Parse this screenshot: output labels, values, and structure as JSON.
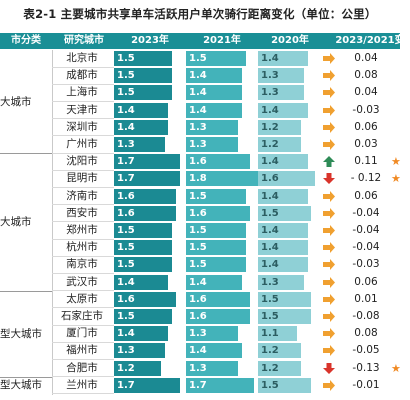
{
  "title": "表2-1 主要城市共享单车活跃用户单次骑行距离变化（单位：公里）",
  "headers": {
    "category": "市分类",
    "city": "研究城市",
    "y2023": "2023年",
    "y2021": "2021年",
    "y2020": "2020年",
    "diff": "2023/2021变"
  },
  "colors": {
    "y2023": "#1b8a93",
    "y2021": "#43b3ba",
    "y2020": "#8fd0d6",
    "up": "#2e8b57",
    "down": "#d9342b",
    "flat": "#f0a030",
    "star": "#f08a24"
  },
  "groups": [
    {
      "label": "大城市",
      "start": 0,
      "count": 6
    },
    {
      "label": "大城市",
      "start": 6,
      "count": 8
    },
    {
      "label": "型大城市",
      "start": 14,
      "count": 5
    },
    {
      "label": "型大城市",
      "start": 19,
      "count": 1
    }
  ],
  "rows": [
    {
      "city": "北京市",
      "y2023": "1.5",
      "y2021": "1.5",
      "y2020": "1.4",
      "trend": "flat-right",
      "diff": "0.04",
      "star": ""
    },
    {
      "city": "成都市",
      "y2023": "1.5",
      "y2021": "1.4",
      "y2020": "1.3",
      "trend": "flat-right",
      "diff": "0.08",
      "star": ""
    },
    {
      "city": "上海市",
      "y2023": "1.5",
      "y2021": "1.4",
      "y2020": "1.3",
      "trend": "flat-right",
      "diff": "0.04",
      "star": ""
    },
    {
      "city": "天津市",
      "y2023": "1.4",
      "y2021": "1.4",
      "y2020": "1.4",
      "trend": "flat-right",
      "diff": "-0.03",
      "star": ""
    },
    {
      "city": "深圳市",
      "y2023": "1.4",
      "y2021": "1.3",
      "y2020": "1.2",
      "trend": "flat-right",
      "diff": "0.06",
      "star": ""
    },
    {
      "city": "广州市",
      "y2023": "1.3",
      "y2021": "1.3",
      "y2020": "1.2",
      "trend": "flat-right",
      "diff": "0.03",
      "star": ""
    },
    {
      "city": "沈阳市",
      "y2023": "1.7",
      "y2021": "1.6",
      "y2020": "1.4",
      "trend": "up",
      "diff": "0.11",
      "star": "★"
    },
    {
      "city": "昆明市",
      "y2023": "1.7",
      "y2021": "1.8",
      "y2020": "1.6",
      "trend": "down",
      "diff": "- 0.12",
      "star": "★"
    },
    {
      "city": "济南市",
      "y2023": "1.6",
      "y2021": "1.5",
      "y2020": "1.4",
      "trend": "flat-right",
      "diff": "0.06",
      "star": ""
    },
    {
      "city": "西安市",
      "y2023": "1.6",
      "y2021": "1.6",
      "y2020": "1.5",
      "trend": "flat-right",
      "diff": "-0.04",
      "star": ""
    },
    {
      "city": "郑州市",
      "y2023": "1.5",
      "y2021": "1.5",
      "y2020": "1.4",
      "trend": "flat-right",
      "diff": "-0.04",
      "star": ""
    },
    {
      "city": "杭州市",
      "y2023": "1.5",
      "y2021": "1.5",
      "y2020": "1.4",
      "trend": "flat-right",
      "diff": "-0.04",
      "star": ""
    },
    {
      "city": "南京市",
      "y2023": "1.5",
      "y2021": "1.5",
      "y2020": "1.4",
      "trend": "flat-right",
      "diff": "-0.03",
      "star": ""
    },
    {
      "city": "武汉市",
      "y2023": "1.4",
      "y2021": "1.4",
      "y2020": "1.3",
      "trend": "flat-right",
      "diff": "0.06",
      "star": ""
    },
    {
      "city": "太原市",
      "y2023": "1.6",
      "y2021": "1.6",
      "y2020": "1.5",
      "trend": "flat-right",
      "diff": "0.01",
      "star": ""
    },
    {
      "city": "石家庄市",
      "y2023": "1.5",
      "y2021": "1.6",
      "y2020": "1.5",
      "trend": "flat-right",
      "diff": "-0.08",
      "star": ""
    },
    {
      "city": "厦门市",
      "y2023": "1.4",
      "y2021": "1.3",
      "y2020": "1.1",
      "trend": "flat-right",
      "diff": "0.08",
      "star": ""
    },
    {
      "city": "福州市",
      "y2023": "1.3",
      "y2021": "1.4",
      "y2020": "1.2",
      "trend": "flat-right",
      "diff": "-0.05",
      "star": ""
    },
    {
      "city": "合肥市",
      "y2023": "1.2",
      "y2021": "1.3",
      "y2020": "1.2",
      "trend": "down",
      "diff": "-0.13",
      "star": "★"
    },
    {
      "city": "兰州市",
      "y2023": "1.7",
      "y2021": "1.7",
      "y2020": "1.5",
      "trend": "flat-right",
      "diff": "-0.01",
      "star": ""
    }
  ]
}
